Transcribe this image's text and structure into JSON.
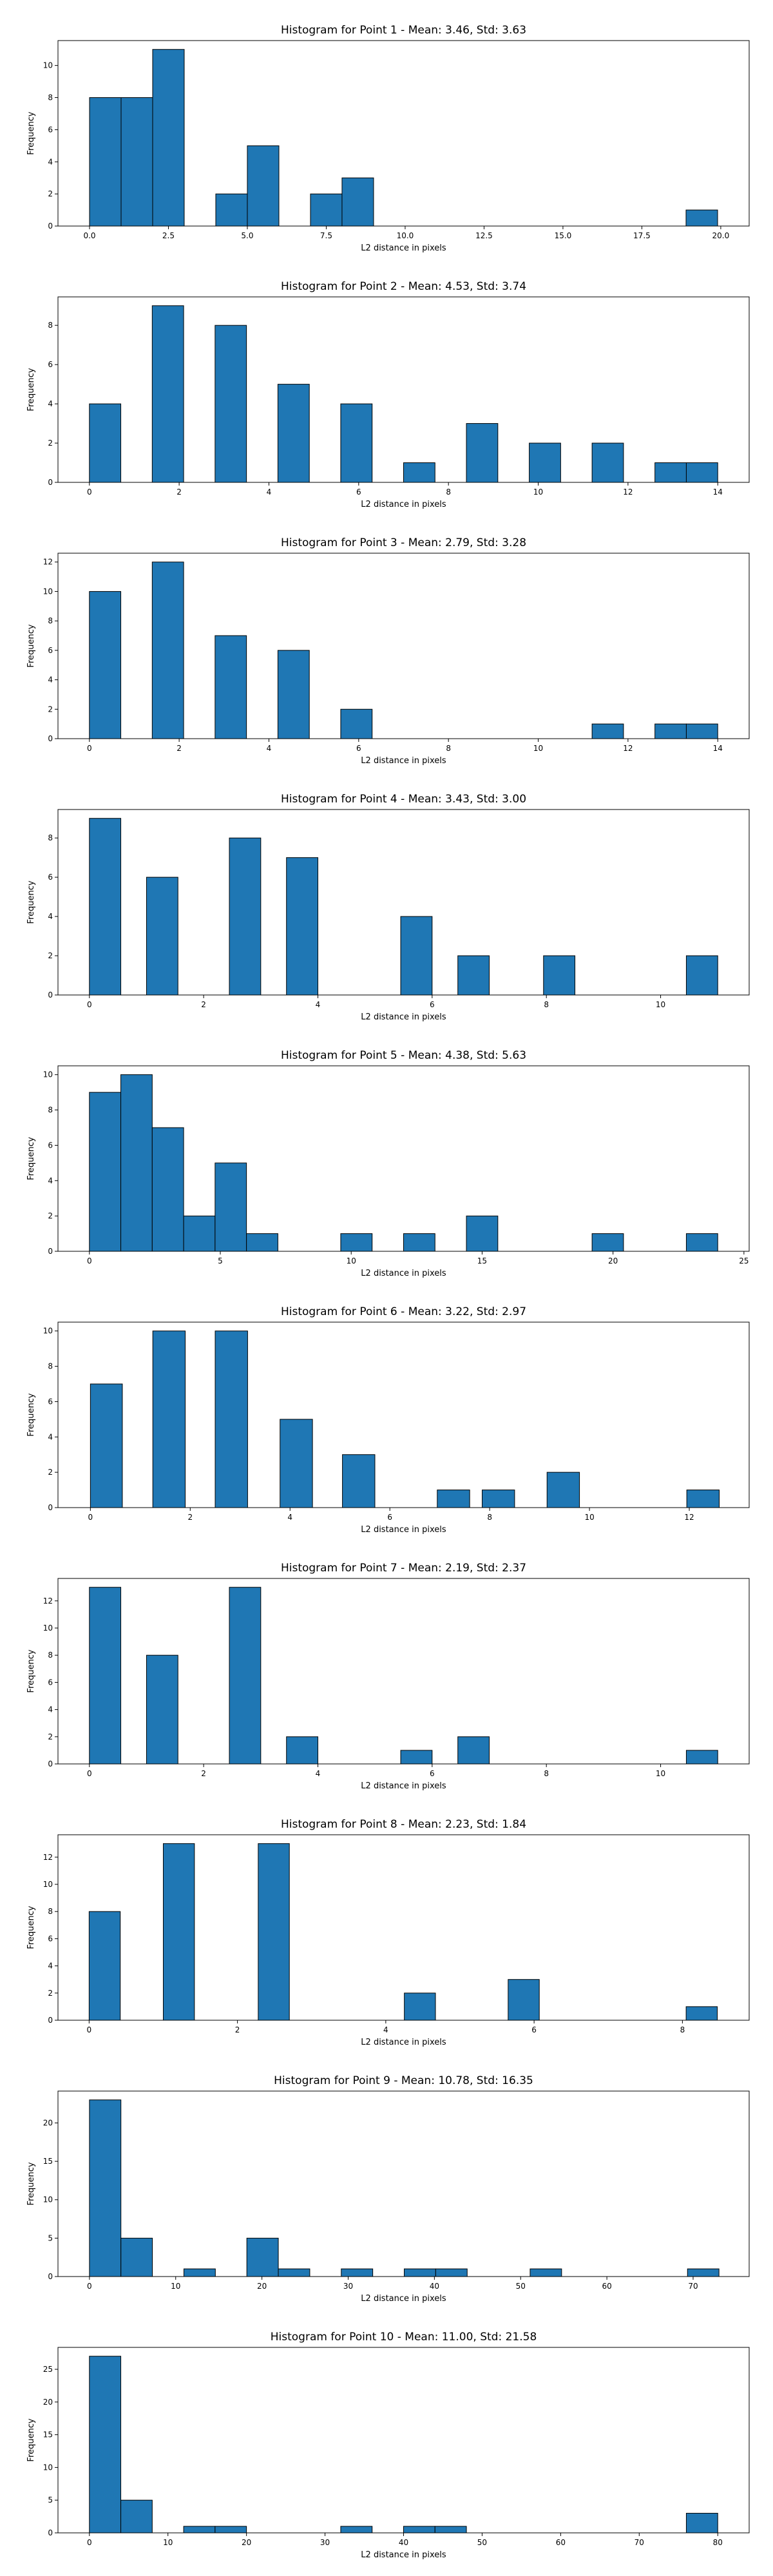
{
  "chart_data": [
    {
      "type": "bar",
      "title": "Histogram for Point 1 - Mean: 3.46, Std: 3.63",
      "xlabel": "L2 distance in pixels",
      "ylabel": "Frequency",
      "xlim": [
        -1.0,
        20.9
      ],
      "ylim": [
        0,
        11.55
      ],
      "xticks": [
        "0.0",
        "2.5",
        "5.0",
        "7.5",
        "10.0",
        "12.5",
        "15.0",
        "17.5",
        "20.0"
      ],
      "xtick_values": [
        0,
        2.5,
        5,
        7.5,
        10,
        12.5,
        15,
        17.5,
        20
      ],
      "yticks": [
        0,
        2,
        4,
        6,
        8,
        10
      ],
      "bars": [
        {
          "x0": 0.0,
          "x1": 1.0,
          "count": 8
        },
        {
          "x0": 1.0,
          "x1": 2.0,
          "count": 8
        },
        {
          "x0": 2.0,
          "x1": 3.0,
          "count": 11
        },
        {
          "x0": 4.0,
          "x1": 5.0,
          "count": 2
        },
        {
          "x0": 5.0,
          "x1": 6.0,
          "count": 5
        },
        {
          "x0": 7.0,
          "x1": 8.0,
          "count": 2
        },
        {
          "x0": 8.0,
          "x1": 9.0,
          "count": 3
        },
        {
          "x0": 18.9,
          "x1": 19.9,
          "count": 1
        }
      ]
    },
    {
      "type": "bar",
      "title": "Histogram for Point 2 - Mean: 4.53, Std: 3.74",
      "xlabel": "L2 distance in pixels",
      "ylabel": "Frequency",
      "xlim": [
        -0.7,
        14.7
      ],
      "ylim": [
        0,
        9.45
      ],
      "xticks": [
        "0",
        "2",
        "4",
        "6",
        "8",
        "10",
        "12",
        "14"
      ],
      "xtick_values": [
        0,
        2,
        4,
        6,
        8,
        10,
        12,
        14
      ],
      "yticks": [
        0,
        2,
        4,
        6,
        8
      ],
      "bars": [
        {
          "x0": 0.0,
          "x1": 0.7,
          "count": 4
        },
        {
          "x0": 1.4,
          "x1": 2.1,
          "count": 9
        },
        {
          "x0": 2.8,
          "x1": 3.5,
          "count": 8
        },
        {
          "x0": 4.2,
          "x1": 4.9,
          "count": 5
        },
        {
          "x0": 5.6,
          "x1": 6.3,
          "count": 4
        },
        {
          "x0": 7.0,
          "x1": 7.7,
          "count": 1
        },
        {
          "x0": 8.4,
          "x1": 9.1,
          "count": 3
        },
        {
          "x0": 9.8,
          "x1": 10.5,
          "count": 2
        },
        {
          "x0": 11.2,
          "x1": 11.9,
          "count": 2
        },
        {
          "x0": 12.6,
          "x1": 13.3,
          "count": 1
        },
        {
          "x0": 13.3,
          "x1": 14.0,
          "count": 1
        }
      ]
    },
    {
      "type": "bar",
      "title": "Histogram for Point 3 - Mean: 2.79, Std: 3.28",
      "xlabel": "L2 distance in pixels",
      "ylabel": "Frequency",
      "xlim": [
        -0.7,
        14.7
      ],
      "ylim": [
        0,
        12.6
      ],
      "xticks": [
        "0",
        "2",
        "4",
        "6",
        "8",
        "10",
        "12",
        "14"
      ],
      "xtick_values": [
        0,
        2,
        4,
        6,
        8,
        10,
        12,
        14
      ],
      "yticks": [
        0,
        2,
        4,
        6,
        8,
        10,
        12
      ],
      "bars": [
        {
          "x0": 0.0,
          "x1": 0.7,
          "count": 10
        },
        {
          "x0": 1.4,
          "x1": 2.1,
          "count": 12
        },
        {
          "x0": 2.8,
          "x1": 3.5,
          "count": 7
        },
        {
          "x0": 4.2,
          "x1": 4.9,
          "count": 6
        },
        {
          "x0": 5.6,
          "x1": 6.3,
          "count": 2
        },
        {
          "x0": 11.2,
          "x1": 11.9,
          "count": 1
        },
        {
          "x0": 12.6,
          "x1": 13.3,
          "count": 1
        },
        {
          "x0": 13.3,
          "x1": 14.0,
          "count": 1
        }
      ]
    },
    {
      "type": "bar",
      "title": "Histogram for Point 4 - Mean: 3.43, Std: 3.00",
      "xlabel": "L2 distance in pixels",
      "ylabel": "Frequency",
      "xlim": [
        -0.55,
        11.55
      ],
      "ylim": [
        0,
        9.45
      ],
      "xticks": [
        "0",
        "2",
        "4",
        "6",
        "8",
        "10"
      ],
      "xtick_values": [
        0,
        2,
        4,
        6,
        8,
        10
      ],
      "yticks": [
        0,
        2,
        4,
        6,
        8
      ],
      "bars": [
        {
          "x0": 0.0,
          "x1": 0.55,
          "count": 9
        },
        {
          "x0": 1.0,
          "x1": 1.55,
          "count": 6
        },
        {
          "x0": 2.45,
          "x1": 3.0,
          "count": 8
        },
        {
          "x0": 3.45,
          "x1": 4.0,
          "count": 7
        },
        {
          "x0": 5.45,
          "x1": 6.0,
          "count": 4
        },
        {
          "x0": 6.45,
          "x1": 7.0,
          "count": 2
        },
        {
          "x0": 7.95,
          "x1": 8.5,
          "count": 2
        },
        {
          "x0": 10.45,
          "x1": 11.0,
          "count": 2
        }
      ]
    },
    {
      "type": "bar",
      "title": "Histogram for Point 5 - Mean: 4.38, Std: 5.63",
      "xlabel": "L2 distance in pixels",
      "ylabel": "Frequency",
      "xlim": [
        -1.2,
        25.2
      ],
      "ylim": [
        0,
        10.5
      ],
      "xticks": [
        "0",
        "5",
        "10",
        "15",
        "20",
        "25"
      ],
      "xtick_values": [
        0,
        5,
        10,
        15,
        20,
        25
      ],
      "yticks": [
        0,
        2,
        4,
        6,
        8,
        10
      ],
      "bars": [
        {
          "x0": 0.0,
          "x1": 1.2,
          "count": 9
        },
        {
          "x0": 1.2,
          "x1": 2.4,
          "count": 10
        },
        {
          "x0": 2.4,
          "x1": 3.6,
          "count": 7
        },
        {
          "x0": 3.6,
          "x1": 4.8,
          "count": 2
        },
        {
          "x0": 4.8,
          "x1": 6.0,
          "count": 5
        },
        {
          "x0": 6.0,
          "x1": 7.2,
          "count": 1
        },
        {
          "x0": 9.6,
          "x1": 10.8,
          "count": 1
        },
        {
          "x0": 12.0,
          "x1": 13.2,
          "count": 1
        },
        {
          "x0": 14.4,
          "x1": 15.6,
          "count": 2
        },
        {
          "x0": 19.2,
          "x1": 20.4,
          "count": 1
        },
        {
          "x0": 22.8,
          "x1": 24.0,
          "count": 1
        }
      ]
    },
    {
      "type": "bar",
      "title": "Histogram for Point 6 - Mean: 3.22, Std: 2.97",
      "xlabel": "L2 distance in pixels",
      "ylabel": "Frequency",
      "xlim": [
        -0.65,
        13.2
      ],
      "ylim": [
        0,
        10.5
      ],
      "xticks": [
        "0",
        "2",
        "4",
        "6",
        "8",
        "10",
        "12"
      ],
      "xtick_values": [
        0,
        2,
        4,
        6,
        8,
        10,
        12
      ],
      "yticks": [
        0,
        2,
        4,
        6,
        8,
        10
      ],
      "bars": [
        {
          "x0": 0.0,
          "x1": 0.64,
          "count": 7
        },
        {
          "x0": 1.25,
          "x1": 1.9,
          "count": 10
        },
        {
          "x0": 2.5,
          "x1": 3.15,
          "count": 10
        },
        {
          "x0": 3.8,
          "x1": 4.45,
          "count": 5
        },
        {
          "x0": 5.05,
          "x1": 5.7,
          "count": 3
        },
        {
          "x0": 6.95,
          "x1": 7.6,
          "count": 1
        },
        {
          "x0": 7.85,
          "x1": 8.5,
          "count": 1
        },
        {
          "x0": 9.15,
          "x1": 9.8,
          "count": 2
        },
        {
          "x0": 11.95,
          "x1": 12.6,
          "count": 1
        }
      ]
    },
    {
      "type": "bar",
      "title": "Histogram for Point 7 - Mean: 2.19, Std: 2.37",
      "xlabel": "L2 distance in pixels",
      "ylabel": "Frequency",
      "xlim": [
        -0.55,
        11.55
      ],
      "ylim": [
        0,
        13.65
      ],
      "xticks": [
        "0",
        "2",
        "4",
        "6",
        "8",
        "10"
      ],
      "xtick_values": [
        0,
        2,
        4,
        6,
        8,
        10
      ],
      "yticks": [
        0,
        2,
        4,
        6,
        8,
        10,
        12
      ],
      "bars": [
        {
          "x0": 0.0,
          "x1": 0.55,
          "count": 13
        },
        {
          "x0": 1.0,
          "x1": 1.55,
          "count": 8
        },
        {
          "x0": 2.45,
          "x1": 3.0,
          "count": 13
        },
        {
          "x0": 3.45,
          "x1": 4.0,
          "count": 2
        },
        {
          "x0": 5.45,
          "x1": 6.0,
          "count": 1
        },
        {
          "x0": 6.45,
          "x1": 7.0,
          "count": 2
        },
        {
          "x0": 10.45,
          "x1": 11.0,
          "count": 1
        }
      ]
    },
    {
      "type": "bar",
      "title": "Histogram for Point 8 - Mean: 2.23, Std: 1.84",
      "xlabel": "L2 distance in pixels",
      "ylabel": "Frequency",
      "xlim": [
        -0.42,
        8.9
      ],
      "ylim": [
        0,
        13.65
      ],
      "xticks": [
        "0",
        "2",
        "4",
        "6",
        "8"
      ],
      "xtick_values": [
        0,
        2,
        4,
        6,
        8
      ],
      "yticks": [
        0,
        2,
        4,
        6,
        8,
        10,
        12
      ],
      "bars": [
        {
          "x0": 0.0,
          "x1": 0.42,
          "count": 8
        },
        {
          "x0": 1.0,
          "x1": 1.42,
          "count": 13
        },
        {
          "x0": 2.28,
          "x1": 2.7,
          "count": 13
        },
        {
          "x0": 4.25,
          "x1": 4.67,
          "count": 2
        },
        {
          "x0": 5.65,
          "x1": 6.07,
          "count": 3
        },
        {
          "x0": 8.05,
          "x1": 8.47,
          "count": 1
        }
      ]
    },
    {
      "type": "bar",
      "title": "Histogram for Point 9 - Mean: 10.78, Std: 16.35",
      "xlabel": "L2 distance in pixels",
      "ylabel": "Frequency",
      "xlim": [
        -3.65,
        76.5
      ],
      "ylim": [
        0,
        24.15
      ],
      "xticks": [
        "0",
        "10",
        "20",
        "30",
        "40",
        "50",
        "60",
        "70"
      ],
      "xtick_values": [
        0,
        10,
        20,
        30,
        40,
        50,
        60,
        70
      ],
      "yticks": [
        0,
        5,
        10,
        15,
        20
      ],
      "bars": [
        {
          "x0": 0.0,
          "x1": 3.65,
          "count": 23
        },
        {
          "x0": 3.65,
          "x1": 7.3,
          "count": 5
        },
        {
          "x0": 10.95,
          "x1": 14.6,
          "count": 1
        },
        {
          "x0": 18.25,
          "x1": 21.9,
          "count": 5
        },
        {
          "x0": 21.9,
          "x1": 25.55,
          "count": 1
        },
        {
          "x0": 29.2,
          "x1": 32.85,
          "count": 1
        },
        {
          "x0": 36.5,
          "x1": 40.15,
          "count": 1
        },
        {
          "x0": 40.15,
          "x1": 43.8,
          "count": 1
        },
        {
          "x0": 51.1,
          "x1": 54.75,
          "count": 1
        },
        {
          "x0": 69.35,
          "x1": 73.0,
          "count": 1
        }
      ]
    },
    {
      "type": "bar",
      "title": "Histogram for Point 10 - Mean: 11.00, Std: 21.58",
      "xlabel": "L2 distance in pixels",
      "ylabel": "Frequency",
      "xlim": [
        -4.0,
        84.0
      ],
      "ylim": [
        0,
        28.35
      ],
      "xticks": [
        "0",
        "10",
        "20",
        "30",
        "40",
        "50",
        "60",
        "70",
        "80"
      ],
      "xtick_values": [
        0,
        10,
        20,
        30,
        40,
        50,
        60,
        70,
        80
      ],
      "yticks": [
        0,
        5,
        10,
        15,
        20,
        25
      ],
      "bars": [
        {
          "x0": 0.0,
          "x1": 4.0,
          "count": 27
        },
        {
          "x0": 4.0,
          "x1": 8.0,
          "count": 5
        },
        {
          "x0": 12.0,
          "x1": 16.0,
          "count": 1
        },
        {
          "x0": 16.0,
          "x1": 20.0,
          "count": 1
        },
        {
          "x0": 32.0,
          "x1": 36.0,
          "count": 1
        },
        {
          "x0": 40.0,
          "x1": 44.0,
          "count": 1
        },
        {
          "x0": 44.0,
          "x1": 48.0,
          "count": 1
        },
        {
          "x0": 76.0,
          "x1": 80.0,
          "count": 3
        }
      ]
    }
  ],
  "colors": {
    "bar_fill": "#1f77b4",
    "bar_edge": "#000000",
    "background": "#ffffff"
  }
}
